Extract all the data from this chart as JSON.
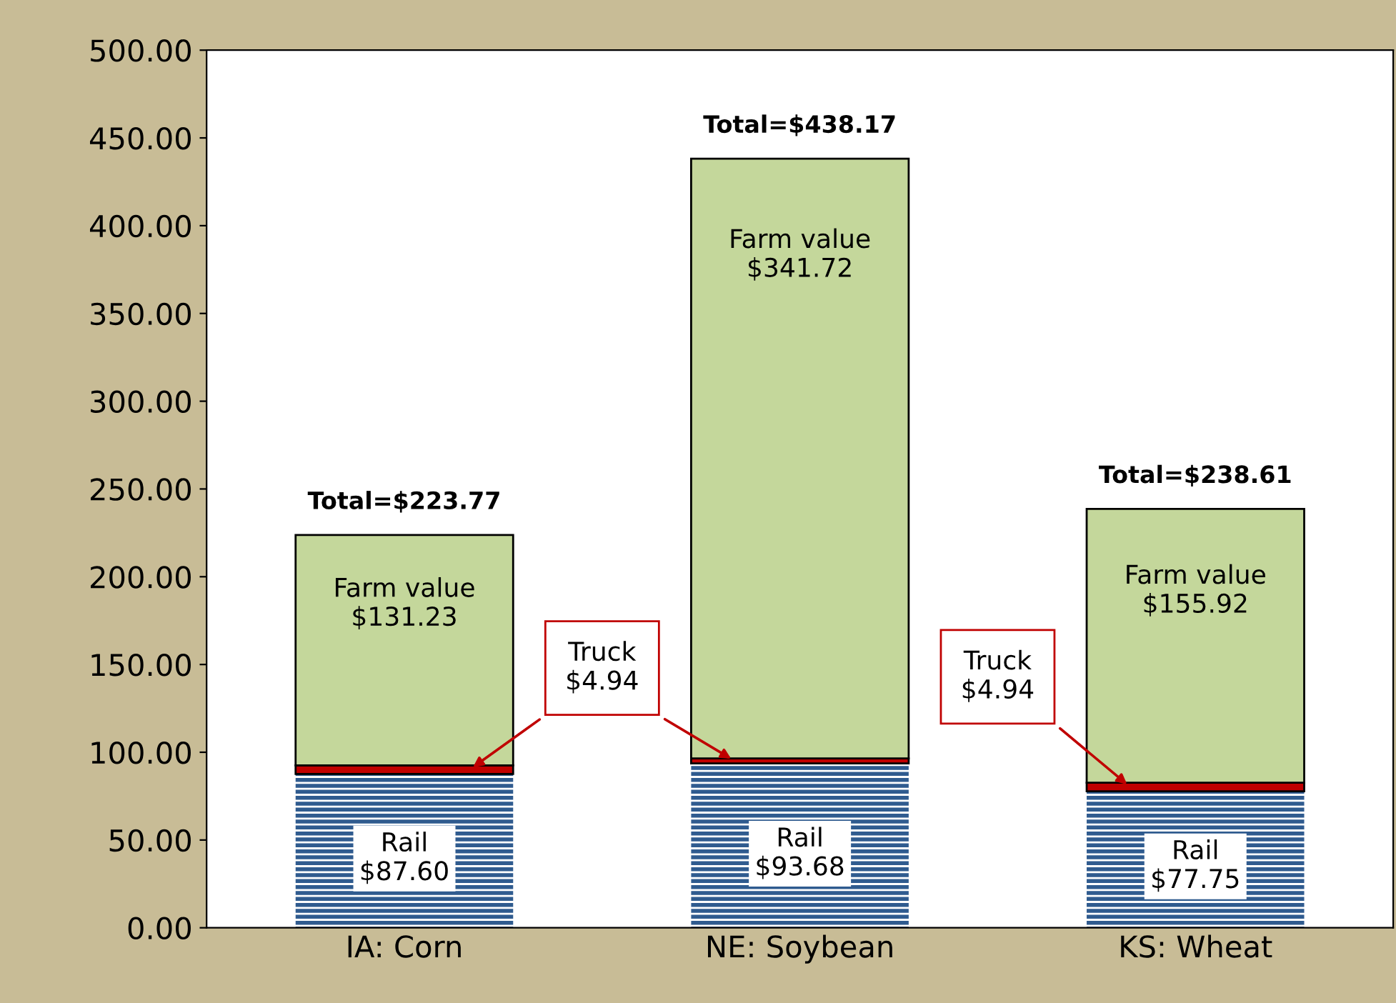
{
  "chart_data": {
    "type": "bar",
    "stacked": true,
    "categories": [
      "IA: Corn",
      "NE: Soybean",
      "KS: Wheat"
    ],
    "series": [
      {
        "name": "Rail",
        "color": "#2f5b8f",
        "values": [
          87.6,
          93.68,
          77.75
        ],
        "value_labels": [
          "$87.60",
          "$93.68",
          "$77.75"
        ]
      },
      {
        "color": "#c00000",
        "values": [
          4.94,
          2.77,
          4.94
        ]
      },
      {
        "name": "Farm value",
        "color": "#c4d79b",
        "values": [
          131.23,
          341.72,
          155.92
        ],
        "value_labels": [
          "$131.23",
          "$341.72",
          "$155.92"
        ]
      }
    ],
    "totals": [
      "Total=$223.77",
      "Total=$438.17",
      "Total=$238.61"
    ],
    "annotations": [
      "Truck\n$4.94",
      "Truck\n$4.94"
    ],
    "ylim": [
      0,
      500
    ],
    "yticks": [
      {
        "value": 0,
        "label": "0.00"
      },
      {
        "value": 50,
        "label": "50.00"
      },
      {
        "value": 100,
        "label": "100.00"
      },
      {
        "value": 150,
        "label": "150.00"
      },
      {
        "value": 200,
        "label": "200.00"
      },
      {
        "value": 250,
        "label": "250.00"
      },
      {
        "value": 300,
        "label": "300.00"
      },
      {
        "value": 350,
        "label": "350.00"
      },
      {
        "value": 400,
        "label": "400.00"
      },
      {
        "value": 450,
        "label": "450.00"
      },
      {
        "value": 500,
        "label": "500.00"
      }
    ],
    "grid": false,
    "legend": false
  }
}
